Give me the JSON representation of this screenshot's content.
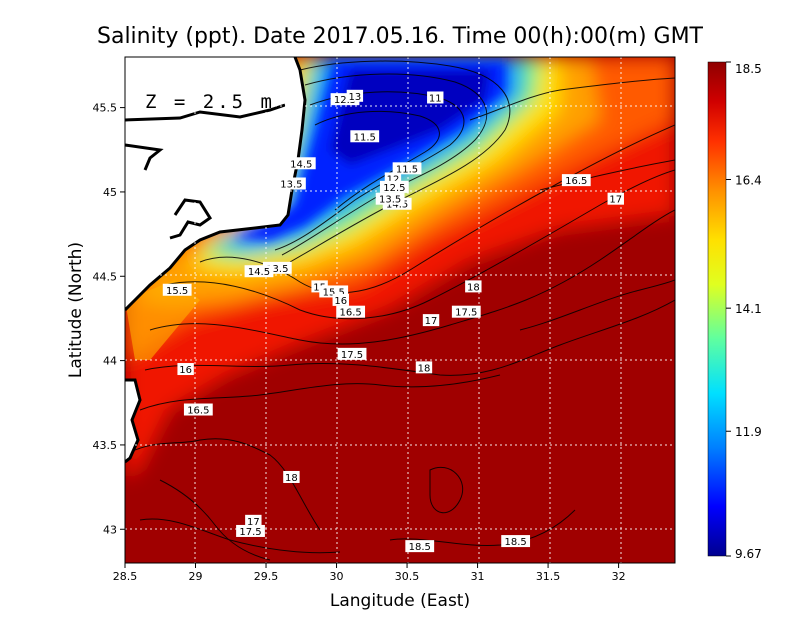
{
  "chart_data": {
    "type": "heatmap",
    "title": "Salinity (ppt). Date 2017.05.16. Time 00(h):00(m) GMT",
    "xlabel": "Langitude (East)",
    "ylabel": "Latitude (North)",
    "annotation": "Z = 2.5 m",
    "xlim": [
      28.5,
      32.4
    ],
    "ylim": [
      42.8,
      45.8
    ],
    "x_ticks": [
      "28.5",
      "29",
      "29.5",
      "30",
      "30.5",
      "31",
      "31.5",
      "32"
    ],
    "y_ticks": [
      "43",
      "43.5",
      "44",
      "44.5",
      "45",
      "45.5"
    ],
    "grid": true,
    "colorbar": {
      "min": 9.67,
      "max": 18.5,
      "tick_labels": [
        "18.5",
        "16.4",
        "14.1",
        "11.9",
        "9.67"
      ],
      "colors": [
        "#00008f",
        "#0000ff",
        "#0080ff",
        "#00e0ff",
        "#60ff9f",
        "#e0ff20",
        "#ffe000",
        "#ff9000",
        "#ff3000",
        "#d00000",
        "#8f0000"
      ]
    },
    "contour_labels": [
      {
        "text": "11",
        "lon": 30.7,
        "lat": 45.56
      },
      {
        "text": "11.5",
        "lon": 30.2,
        "lat": 45.33
      },
      {
        "text": "11.5",
        "lon": 30.5,
        "lat": 45.14
      },
      {
        "text": "12",
        "lon": 30.4,
        "lat": 45.08
      },
      {
        "text": "12.5",
        "lon": 30.41,
        "lat": 45.03
      },
      {
        "text": "12.5",
        "lon": 30.06,
        "lat": 45.55
      },
      {
        "text": "13",
        "lon": 30.13,
        "lat": 45.57
      },
      {
        "text": "13.5",
        "lon": 29.68,
        "lat": 45.05
      },
      {
        "text": "14.5",
        "lon": 29.75,
        "lat": 45.17
      },
      {
        "text": "14.5",
        "lon": 30.43,
        "lat": 44.93
      },
      {
        "text": "13.5",
        "lon": 30.38,
        "lat": 44.96
      },
      {
        "text": "13.5",
        "lon": 29.58,
        "lat": 44.55
      },
      {
        "text": "14.5",
        "lon": 29.45,
        "lat": 44.53
      },
      {
        "text": "15",
        "lon": 29.88,
        "lat": 44.44
      },
      {
        "text": "15.5",
        "lon": 29.98,
        "lat": 44.41
      },
      {
        "text": "16",
        "lon": 30.03,
        "lat": 44.36
      },
      {
        "text": "15.5",
        "lon": 28.87,
        "lat": 44.42
      },
      {
        "text": "16.5",
        "lon": 30.1,
        "lat": 44.29
      },
      {
        "text": "17",
        "lon": 30.67,
        "lat": 44.24
      },
      {
        "text": "17.5",
        "lon": 30.92,
        "lat": 44.29
      },
      {
        "text": "18",
        "lon": 30.97,
        "lat": 44.44
      },
      {
        "text": "16.5",
        "lon": 31.7,
        "lat": 45.07
      },
      {
        "text": "17",
        "lon": 31.98,
        "lat": 44.96
      },
      {
        "text": "17.5",
        "lon": 30.11,
        "lat": 44.04
      },
      {
        "text": "18",
        "lon": 30.62,
        "lat": 43.96
      },
      {
        "text": "16",
        "lon": 28.93,
        "lat": 43.95
      },
      {
        "text": "16.5",
        "lon": 29.02,
        "lat": 43.71
      },
      {
        "text": "18",
        "lon": 29.68,
        "lat": 43.31
      },
      {
        "text": "17",
        "lon": 29.41,
        "lat": 43.05
      },
      {
        "text": "17.5",
        "lon": 29.39,
        "lat": 42.99
      },
      {
        "text": "18.5",
        "lon": 30.59,
        "lat": 42.9
      },
      {
        "text": "18.5",
        "lon": 31.27,
        "lat": 42.93
      }
    ]
  }
}
